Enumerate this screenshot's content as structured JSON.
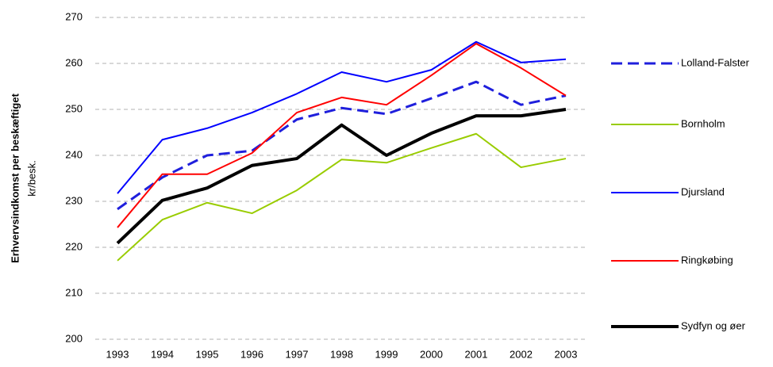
{
  "chart_data": {
    "type": "line",
    "y_label": "Erhvervsindkomst per beskæftiget",
    "y_unit": "kr/besk.",
    "categories": [
      "1993",
      "1994",
      "1995",
      "1996",
      "1997",
      "1998",
      "1999",
      "2000",
      "2001",
      "2002",
      "2003"
    ],
    "series": [
      {
        "name": "Lolland-Falster",
        "color": "#1f1fdc",
        "dashed": true,
        "width": 3,
        "values": [
          228.3,
          235.2,
          240,
          241,
          247.8,
          250.3,
          249,
          252.4,
          256,
          251,
          253
        ]
      },
      {
        "name": "Bornholm",
        "color": "#99cc00",
        "dashed": false,
        "width": 2,
        "values": [
          217.1,
          226,
          229.7,
          227.4,
          232.4,
          239.1,
          238.4,
          241.6,
          244.7,
          237.4,
          239.3
        ]
      },
      {
        "name": "Djursland",
        "color": "#0000ff",
        "dashed": false,
        "width": 2,
        "values": [
          231.7,
          243.4,
          245.9,
          249.3,
          253.4,
          258.1,
          256,
          258.6,
          264.7,
          260.2,
          260.9
        ]
      },
      {
        "name": "Ringkøbing",
        "color": "#ff0000",
        "dashed": false,
        "width": 2,
        "values": [
          224.3,
          235.9,
          235.9,
          240.5,
          249.3,
          252.6,
          251,
          257.4,
          264.3,
          259,
          253
        ]
      },
      {
        "name": "Sydfyn og øer",
        "color": "#000000",
        "dashed": false,
        "width": 4,
        "values": [
          220.9,
          230.2,
          232.9,
          237.8,
          239.3,
          246.6,
          240,
          244.8,
          248.6,
          248.6,
          250
        ]
      }
    ],
    "ylim": [
      200,
      270
    ],
    "yticks": [
      200,
      210,
      220,
      230,
      240,
      250,
      260,
      270
    ],
    "grid": true
  }
}
